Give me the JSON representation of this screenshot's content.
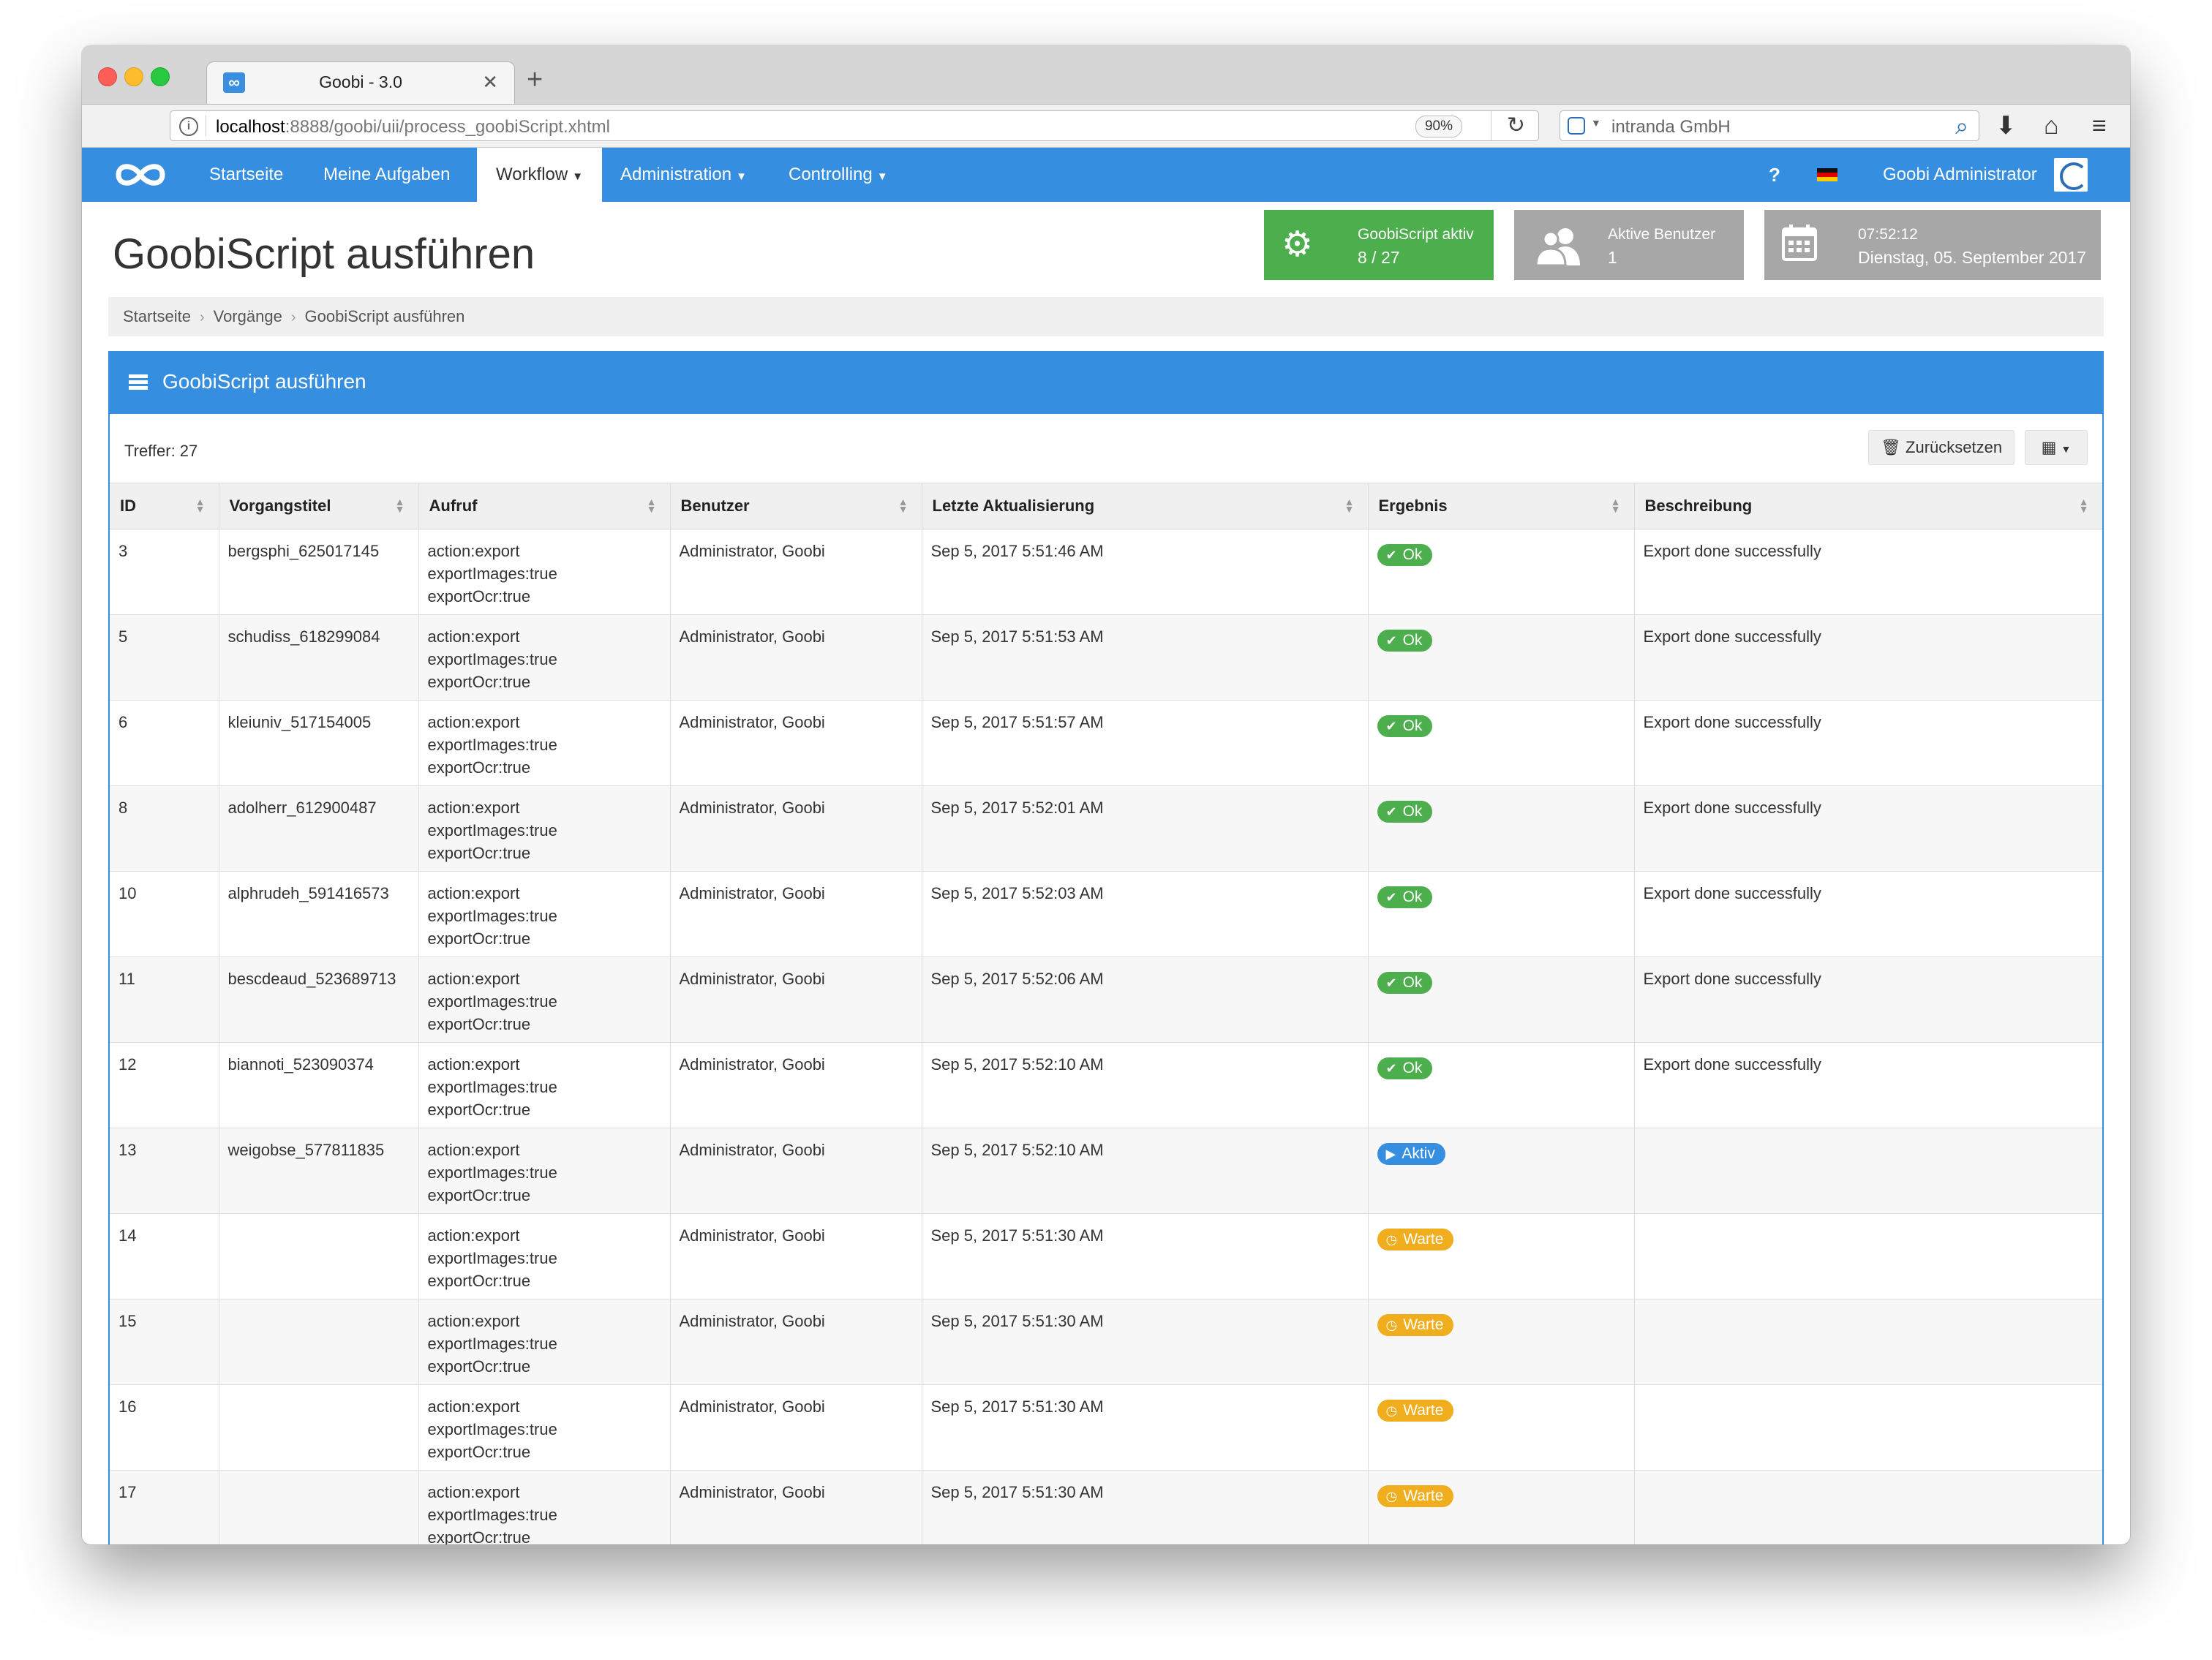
{
  "browser": {
    "tab_title": "Goobi - 3.0",
    "tab_close": "✕",
    "new_tab": "+",
    "url_host": "localhost",
    "url_path": ":8888/goobi/uii/process_goobiScript.xhtml",
    "zoom": "90%",
    "search_text": "intranda GmbH"
  },
  "navbar": {
    "items": [
      {
        "label": "Startseite"
      },
      {
        "label": "Meine Aufgaben"
      },
      {
        "label": "Workflow"
      },
      {
        "label": "Administration"
      },
      {
        "label": "Controlling"
      }
    ],
    "help": "?",
    "user": "Goobi Administrator"
  },
  "header": {
    "title": "GoobiScript ausführen",
    "widgets": {
      "script": {
        "label": "GoobiScript aktiv",
        "value": "8 / 27"
      },
      "users": {
        "label": "Aktive Benutzer",
        "value": "1"
      },
      "clock": {
        "time": "07:52:12",
        "date": "Dienstag, 05. September 2017"
      }
    }
  },
  "breadcrumb": [
    "Startseite",
    "Vorgänge",
    "GoobiScript ausführen"
  ],
  "panel": {
    "title": "GoobiScript ausführen",
    "hits": "Treffer: 27",
    "reset_label": "Zurücksetzen"
  },
  "table": {
    "columns": [
      "ID",
      "Vorgangstitel",
      "Aufruf",
      "Benutzer",
      "Letzte Aktualisierung",
      "Ergebnis",
      "Beschreibung"
    ],
    "rows": [
      {
        "id": "3",
        "title": "bergsphi_625017145",
        "call": [
          "action:export",
          "exportImages:true",
          "exportOcr:true"
        ],
        "user": "Administrator, Goobi",
        "updated": "Sep 5, 2017 5:51:46 AM",
        "result": "Ok",
        "status": "ok",
        "desc": "Export done successfully"
      },
      {
        "id": "5",
        "title": "schudiss_618299084",
        "call": [
          "action:export",
          "exportImages:true",
          "exportOcr:true"
        ],
        "user": "Administrator, Goobi",
        "updated": "Sep 5, 2017 5:51:53 AM",
        "result": "Ok",
        "status": "ok",
        "desc": "Export done successfully"
      },
      {
        "id": "6",
        "title": "kleiuniv_517154005",
        "call": [
          "action:export",
          "exportImages:true",
          "exportOcr:true"
        ],
        "user": "Administrator, Goobi",
        "updated": "Sep 5, 2017 5:51:57 AM",
        "result": "Ok",
        "status": "ok",
        "desc": "Export done successfully"
      },
      {
        "id": "8",
        "title": "adolherr_612900487",
        "call": [
          "action:export",
          "exportImages:true",
          "exportOcr:true"
        ],
        "user": "Administrator, Goobi",
        "updated": "Sep 5, 2017 5:52:01 AM",
        "result": "Ok",
        "status": "ok",
        "desc": "Export done successfully"
      },
      {
        "id": "10",
        "title": "alphrudeh_591416573",
        "call": [
          "action:export",
          "exportImages:true",
          "exportOcr:true"
        ],
        "user": "Administrator, Goobi",
        "updated": "Sep 5, 2017 5:52:03 AM",
        "result": "Ok",
        "status": "ok",
        "desc": "Export done successfully"
      },
      {
        "id": "11",
        "title": "bescdeaud_523689713",
        "call": [
          "action:export",
          "exportImages:true",
          "exportOcr:true"
        ],
        "user": "Administrator, Goobi",
        "updated": "Sep 5, 2017 5:52:06 AM",
        "result": "Ok",
        "status": "ok",
        "desc": "Export done successfully"
      },
      {
        "id": "12",
        "title": "biannoti_523090374",
        "call": [
          "action:export",
          "exportImages:true",
          "exportOcr:true"
        ],
        "user": "Administrator, Goobi",
        "updated": "Sep 5, 2017 5:52:10 AM",
        "result": "Ok",
        "status": "ok",
        "desc": "Export done successfully"
      },
      {
        "id": "13",
        "title": "weigobse_577811835",
        "call": [
          "action:export",
          "exportImages:true",
          "exportOcr:true"
        ],
        "user": "Administrator, Goobi",
        "updated": "Sep 5, 2017 5:52:10 AM",
        "result": "Aktiv",
        "status": "aktiv",
        "desc": ""
      },
      {
        "id": "14",
        "title": "",
        "call": [
          "action:export",
          "exportImages:true",
          "exportOcr:true"
        ],
        "user": "Administrator, Goobi",
        "updated": "Sep 5, 2017 5:51:30 AM",
        "result": "Warte",
        "status": "warte",
        "desc": ""
      },
      {
        "id": "15",
        "title": "",
        "call": [
          "action:export",
          "exportImages:true",
          "exportOcr:true"
        ],
        "user": "Administrator, Goobi",
        "updated": "Sep 5, 2017 5:51:30 AM",
        "result": "Warte",
        "status": "warte",
        "desc": ""
      },
      {
        "id": "16",
        "title": "",
        "call": [
          "action:export",
          "exportImages:true",
          "exportOcr:true"
        ],
        "user": "Administrator, Goobi",
        "updated": "Sep 5, 2017 5:51:30 AM",
        "result": "Warte",
        "status": "warte",
        "desc": ""
      },
      {
        "id": "17",
        "title": "",
        "call": [
          "action:export",
          "exportImages:true",
          "exportOcr:true"
        ],
        "user": "Administrator, Goobi",
        "updated": "Sep 5, 2017 5:51:30 AM",
        "result": "Warte",
        "status": "warte",
        "desc": ""
      }
    ]
  },
  "colors": {
    "brand_blue": "#368ee0",
    "ok_green": "#4cae4c",
    "warte_orange": "#f0ad1e",
    "widget_gray": "#a7a7a7"
  }
}
